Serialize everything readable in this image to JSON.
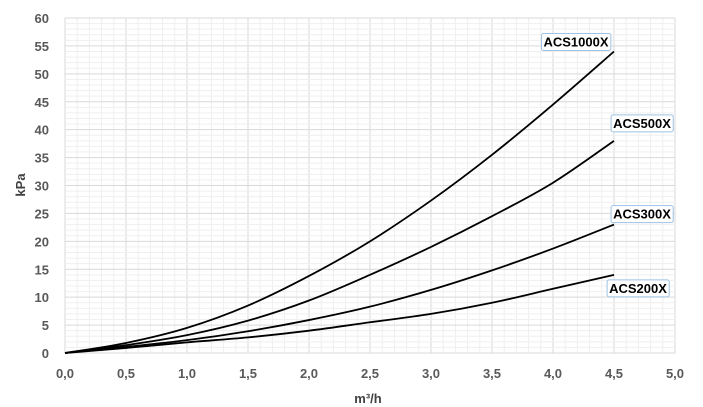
{
  "chart_data": {
    "type": "line",
    "xlabel": "m³/h",
    "ylabel": "kPa",
    "xlim": [
      0,
      5
    ],
    "ylim": [
      0,
      60
    ],
    "x_ticks": [
      "0,0",
      "0,5",
      "1,0",
      "1,5",
      "2,0",
      "2,5",
      "3,0",
      "3,5",
      "4,0",
      "4,5",
      "5,0"
    ],
    "y_ticks": [
      "0",
      "5",
      "10",
      "15",
      "20",
      "25",
      "30",
      "35",
      "40",
      "45",
      "50",
      "55",
      "60"
    ],
    "grid": true,
    "series": [
      {
        "name": "ACS1000X",
        "x": [
          0,
          0.5,
          1.0,
          1.5,
          2.0,
          2.5,
          3.0,
          3.5,
          4.0,
          4.5
        ],
        "y": [
          0,
          1.8,
          4.5,
          8.5,
          13.8,
          20,
          27.3,
          35.5,
          44.5,
          54
        ]
      },
      {
        "name": "ACS500X",
        "x": [
          0,
          0.5,
          1.0,
          1.5,
          2.0,
          2.5,
          3.0,
          3.5,
          4.0,
          4.5
        ],
        "y": [
          0,
          1.4,
          3.2,
          5.8,
          9.4,
          14,
          19,
          24.5,
          30.5,
          38
        ]
      },
      {
        "name": "ACS300X",
        "x": [
          0,
          0.5,
          1.0,
          1.5,
          2.0,
          2.5,
          3.0,
          3.5,
          4.0,
          4.5
        ],
        "y": [
          0,
          1.1,
          2.3,
          3.9,
          5.9,
          8.3,
          11.3,
          14.8,
          18.7,
          23
        ]
      },
      {
        "name": "ACS200X",
        "x": [
          0,
          0.5,
          1.0,
          1.5,
          2.0,
          2.5,
          3.0,
          3.5,
          4.0,
          4.5
        ],
        "y": [
          0,
          0.9,
          1.9,
          2.8,
          4.0,
          5.5,
          7.0,
          9.0,
          11.5,
          14
        ]
      }
    ]
  }
}
